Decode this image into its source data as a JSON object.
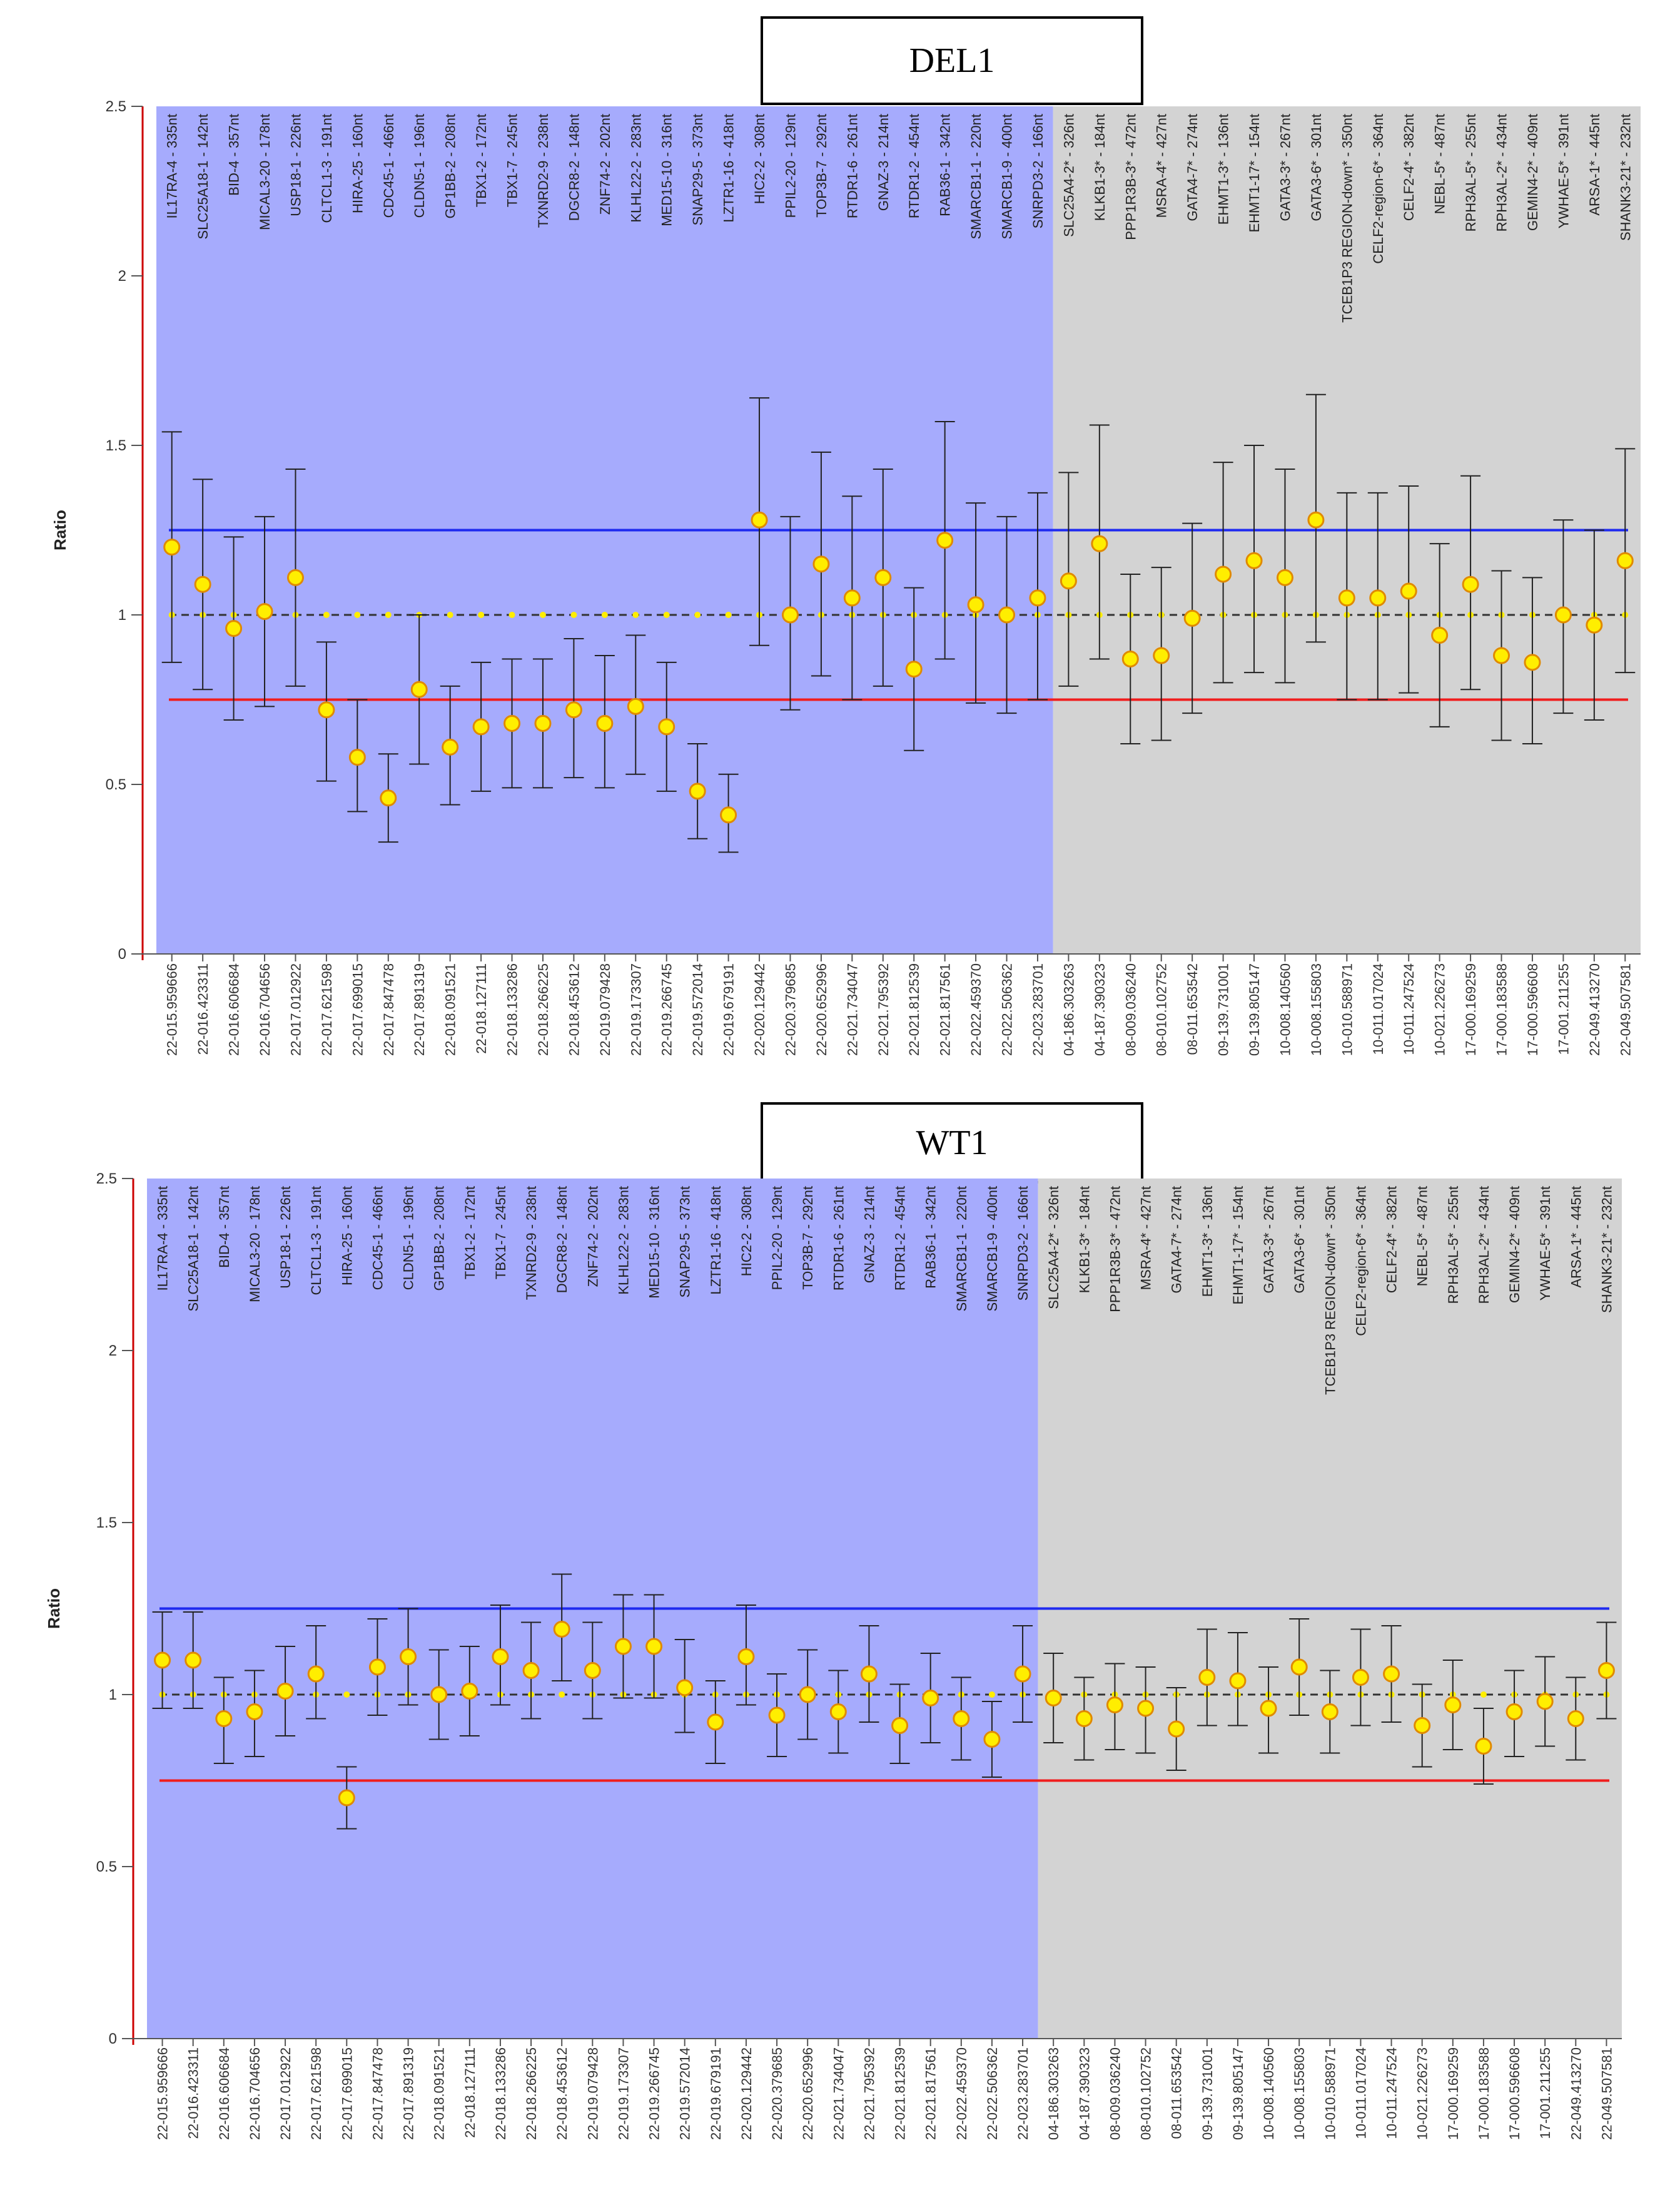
{
  "charts": [
    {
      "title": "DEL1",
      "type": "scatter",
      "ylabel": "Ratio",
      "ylim": [
        0,
        2.5
      ],
      "yticks": [
        "0",
        "0.5",
        "1",
        "1.5",
        "2",
        "2.5"
      ],
      "upper_threshold": 1.25,
      "lower_threshold": 0.75,
      "reference": 1.0,
      "series": [
        {
          "name": "ratio",
          "values": [
            1.2,
            1.09,
            0.96,
            1.01,
            1.11,
            0.72,
            0.58,
            0.46,
            0.78,
            0.61,
            0.67,
            0.68,
            0.68,
            0.72,
            0.68,
            0.73,
            0.67,
            0.48,
            0.41,
            1.28,
            1.0,
            1.15,
            1.05,
            1.11,
            0.84,
            1.22,
            1.03,
            1.0,
            1.05,
            1.1,
            1.21,
            0.87,
            0.88,
            0.99,
            1.12,
            1.16,
            1.11,
            1.28,
            1.05,
            1.05,
            1.07,
            0.94,
            1.09,
            0.88,
            0.86,
            1.0,
            0.97,
            1.16
          ]
        },
        {
          "name": "err_low",
          "values": [
            0.86,
            0.78,
            0.69,
            0.73,
            0.79,
            0.51,
            0.42,
            0.33,
            0.56,
            0.44,
            0.48,
            0.49,
            0.49,
            0.52,
            0.49,
            0.53,
            0.48,
            0.34,
            0.3,
            0.91,
            0.72,
            0.82,
            0.75,
            0.79,
            0.6,
            0.87,
            0.74,
            0.71,
            0.75,
            0.79,
            0.87,
            0.62,
            0.63,
            0.71,
            0.8,
            0.83,
            0.8,
            0.92,
            0.75,
            0.75,
            0.77,
            0.67,
            0.78,
            0.63,
            0.62,
            0.71,
            0.69,
            0.83
          ]
        },
        {
          "name": "err_high",
          "values": [
            1.54,
            1.4,
            1.23,
            1.29,
            1.43,
            0.92,
            0.75,
            0.59,
            1.0,
            0.79,
            0.86,
            0.87,
            0.87,
            0.93,
            0.88,
            0.94,
            0.86,
            0.62,
            0.53,
            1.64,
            1.29,
            1.48,
            1.35,
            1.43,
            1.08,
            1.57,
            1.33,
            1.29,
            1.36,
            1.42,
            1.56,
            1.12,
            1.14,
            1.27,
            1.45,
            1.5,
            1.43,
            1.65,
            1.36,
            1.36,
            1.38,
            1.21,
            1.41,
            1.13,
            1.11,
            1.28,
            1.25,
            1.49
          ]
        }
      ]
    },
    {
      "title": "WT1",
      "type": "scatter",
      "ylabel": "Ratio",
      "ylim": [
        0,
        2.5
      ],
      "yticks": [
        "0",
        "0.5",
        "1",
        "1.5",
        "2",
        "2.5"
      ],
      "upper_threshold": 1.25,
      "lower_threshold": 0.75,
      "reference": 1.0,
      "series": [
        {
          "name": "ratio",
          "values": [
            1.1,
            1.1,
            0.93,
            0.95,
            1.01,
            1.06,
            0.7,
            1.08,
            1.11,
            1.0,
            1.01,
            1.11,
            1.07,
            1.19,
            1.07,
            1.14,
            1.14,
            1.02,
            0.92,
            1.11,
            0.94,
            1.0,
            0.95,
            1.06,
            0.91,
            0.99,
            0.93,
            0.87,
            1.06,
            0.99,
            0.93,
            0.97,
            0.96,
            0.9,
            1.05,
            1.04,
            0.96,
            1.08,
            0.95,
            1.05,
            1.06,
            0.91,
            0.97,
            0.85,
            0.95,
            0.98,
            0.93,
            1.07
          ]
        },
        {
          "name": "err_low",
          "values": [
            0.96,
            0.96,
            0.8,
            0.82,
            0.88,
            0.93,
            0.61,
            0.94,
            0.97,
            0.87,
            0.88,
            0.97,
            0.93,
            1.04,
            0.93,
            0.99,
            0.99,
            0.89,
            0.8,
            0.97,
            0.82,
            0.87,
            0.83,
            0.92,
            0.8,
            0.86,
            0.81,
            0.76,
            0.92,
            0.86,
            0.81,
            0.84,
            0.83,
            0.78,
            0.91,
            0.91,
            0.83,
            0.94,
            0.83,
            0.91,
            0.92,
            0.79,
            0.84,
            0.74,
            0.82,
            0.85,
            0.81,
            0.93
          ]
        },
        {
          "name": "err_high",
          "values": [
            1.24,
            1.24,
            1.05,
            1.07,
            1.14,
            1.2,
            0.79,
            1.22,
            1.25,
            1.13,
            1.14,
            1.26,
            1.21,
            1.35,
            1.21,
            1.29,
            1.29,
            1.16,
            1.04,
            1.26,
            1.06,
            1.13,
            1.07,
            1.2,
            1.03,
            1.12,
            1.05,
            0.98,
            1.2,
            1.12,
            1.05,
            1.09,
            1.08,
            1.02,
            1.19,
            1.18,
            1.08,
            1.22,
            1.07,
            1.19,
            1.2,
            1.03,
            1.1,
            0.96,
            1.07,
            1.11,
            1.05,
            1.21
          ]
        }
      ]
    }
  ],
  "chart_data": {
    "type": "scatter",
    "categories": [
      "22-015.959666",
      "22-016.423311",
      "22-016.606684",
      "22-016.704656",
      "22-017.012922",
      "22-017.621598",
      "22-017.699015",
      "22-017.847478",
      "22-017.891319",
      "22-018.091521",
      "22-018.127111",
      "22-018.133286",
      "22-018.266225",
      "22-018.453612",
      "22-019.079428",
      "22-019.173307",
      "22-019.266745",
      "22-019.572014",
      "22-019.679191",
      "22-020.129442",
      "22-020.379685",
      "22-020.652996",
      "22-021.734047",
      "22-021.795392",
      "22-021.812539",
      "22-021.817561",
      "22-022.459370",
      "22-022.506362",
      "22-023.283701",
      "04-186.303263",
      "04-187.390323",
      "08-009.036240",
      "08-010.102752",
      "08-011.653542",
      "09-139.731001",
      "09-139.805147",
      "10-008.140560",
      "10-008.155803",
      "10-010.588971",
      "10-011.017024",
      "10-011.247524",
      "10-021.226273",
      "17-000.169259",
      "17-000.183588",
      "17-000.596608",
      "17-001.211255",
      "22-049.413270",
      "22-049.507581"
    ],
    "probes": [
      "IL17RA-4 - 335nt",
      "SLC25A18-1 - 142nt",
      "BID-4 - 357nt",
      "MICAL3-20 - 178nt",
      "USP18-1 - 226nt",
      "CLTCL1-3 - 191nt",
      "HIRA-25 - 160nt",
      "CDC45-1 - 466nt",
      "CLDN5-1 - 196nt",
      "GP1BB-2 - 208nt",
      "TBX1-2 - 172nt",
      "TBX1-7 - 245nt",
      "TXNRD2-9 - 238nt",
      "DGCR8-2 - 148nt",
      "ZNF74-2 - 202nt",
      "KLHL22-2 - 283nt",
      "MED15-10 - 316nt",
      "SNAP29-5 - 373nt",
      "LZTR1-16 - 418nt",
      "HIC2-2 - 308nt",
      "PPIL2-20 - 129nt",
      "TOP3B-7 - 292nt",
      "RTDR1-6 - 261nt",
      "GNAZ-3 - 214nt",
      "RTDR1-2 - 454nt",
      "RAB36-1 - 342nt",
      "SMARCB1-1 - 220nt",
      "SMARCB1-9 - 400nt",
      "SNRPD3-2 - 166nt",
      "SLC25A4-2* - 326nt",
      "KLKB1-3* - 184nt",
      "PPP1R3B-3* - 472nt",
      "MSRA-4* - 427nt",
      "GATA4-7* - 274nt",
      "EHMT1-3* - 136nt",
      "EHMT1-17* - 154nt",
      "GATA3-3* - 267nt",
      "GATA3-6* - 301nt",
      "TCEB1P3 REGION-down* - 350nt",
      "CELF2-region-6* - 364nt",
      "CELF2-4* - 382nt",
      "NEBL-5* - 487nt",
      "RPH3AL-5* - 255nt",
      "RPH3AL-2* - 434nt",
      "GEMIN4-2* - 409nt",
      "YWHAE-5* - 391nt",
      "ARSA-1* - 445nt",
      "SHANK3-21* - 232nt"
    ],
    "test_region_count": 29,
    "xlabel": "",
    "colors": {
      "test_region": "#a6abfd",
      "reference_region": "#d3d3d3",
      "upper_line": "#1f2bf0",
      "lower_line": "#f01d1d",
      "reference_line": "#333333",
      "marker_fill": "#ffee00",
      "marker_stroke": "#e08a00",
      "error_bar": "#222222",
      "axis": "#555555",
      "left_axis": "#cc0000"
    }
  }
}
